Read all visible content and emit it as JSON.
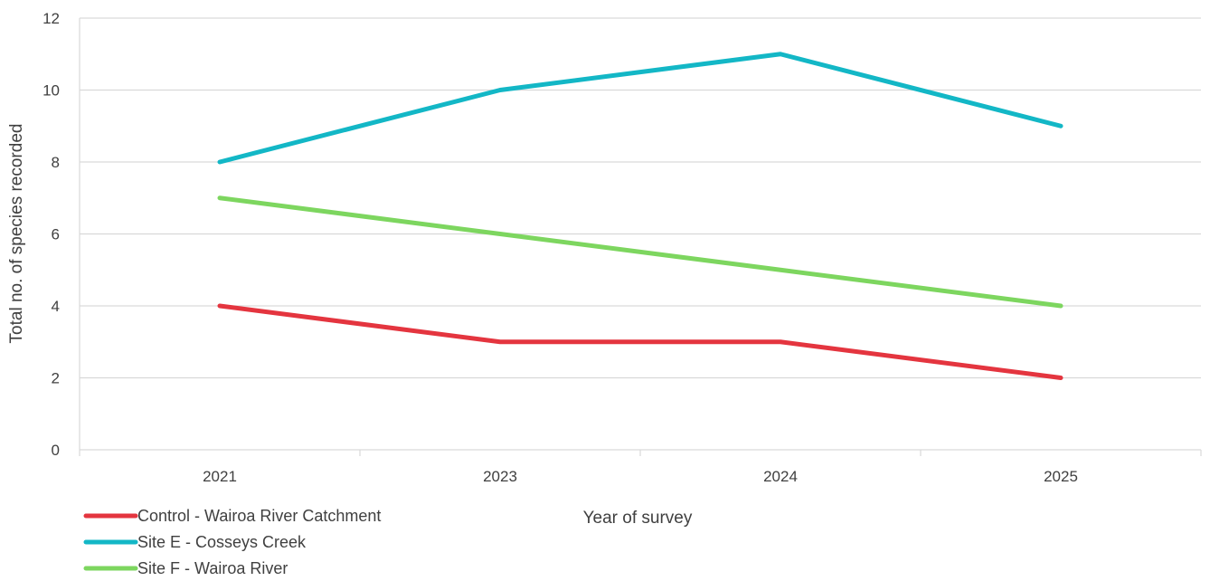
{
  "chart_data": {
    "type": "line",
    "title": "",
    "xlabel": "Year of survey",
    "ylabel": "Total no. of species recorded",
    "categories": [
      "2021",
      "2023",
      "2024",
      "2025"
    ],
    "ylim": [
      0,
      12
    ],
    "yticks": [
      0,
      2,
      4,
      6,
      8,
      10,
      12
    ],
    "grid": true,
    "legend_position": "bottom-left",
    "series": [
      {
        "name": "Control - Wairoa River Catchment",
        "color": "#e4353f",
        "values": [
          4,
          3,
          3,
          2
        ]
      },
      {
        "name": "Site E - Cosseys Creek",
        "color": "#13b7c6",
        "values": [
          8,
          10,
          11,
          9
        ]
      },
      {
        "name": "Site F - Wairoa River",
        "color": "#7dd65f",
        "values": [
          7,
          6,
          5,
          4
        ]
      }
    ]
  }
}
